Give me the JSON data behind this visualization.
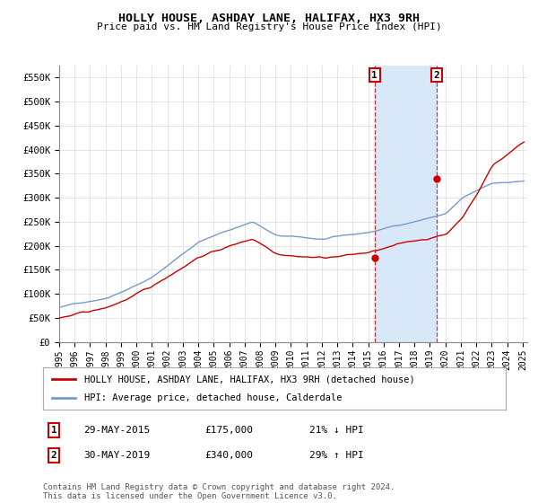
{
  "title": "HOLLY HOUSE, ASHDAY LANE, HALIFAX, HX3 9RH",
  "subtitle": "Price paid vs. HM Land Registry's House Price Index (HPI)",
  "ylabel_ticks": [
    "£0",
    "£50K",
    "£100K",
    "£150K",
    "£200K",
    "£250K",
    "£300K",
    "£350K",
    "£400K",
    "£450K",
    "£500K",
    "£550K"
  ],
  "ytick_values": [
    0,
    50000,
    100000,
    150000,
    200000,
    250000,
    300000,
    350000,
    400000,
    450000,
    500000,
    550000
  ],
  "year_start": 1995,
  "year_end": 2025,
  "sale1_year": 2015.42,
  "sale1_price": 175000,
  "sale1_label": "1",
  "sale1_date": "29-MAY-2015",
  "sale1_pct": "21% ↓ HPI",
  "sale2_year": 2019.42,
  "sale2_price": 340000,
  "sale2_label": "2",
  "sale2_date": "30-MAY-2019",
  "sale2_pct": "29% ↑ HPI",
  "hpi_color": "#7799cc",
  "price_color": "#cc0000",
  "shade_color": "#d8e8f8",
  "vline_color": "#cc0000",
  "legend1_label": "HOLLY HOUSE, ASHDAY LANE, HALIFAX, HX3 9RH (detached house)",
  "legend2_label": "HPI: Average price, detached house, Calderdale",
  "footer": "Contains HM Land Registry data © Crown copyright and database right 2024.\nThis data is licensed under the Open Government Licence v3.0.",
  "bg_color": "#ffffff",
  "plot_bg_color": "#ffffff",
  "grid_color": "#e0e0e0"
}
